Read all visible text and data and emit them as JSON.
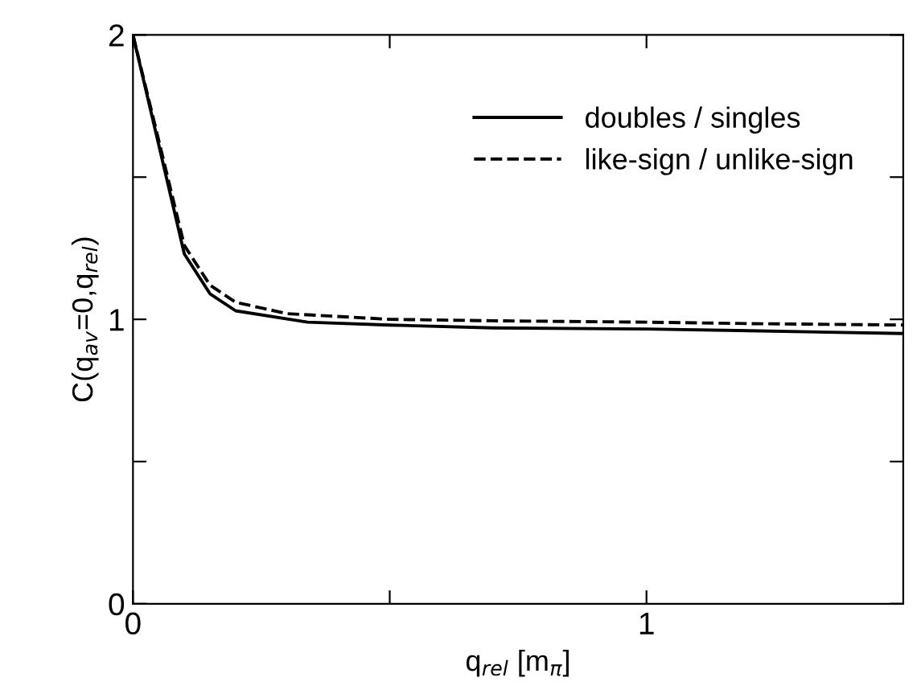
{
  "chart_data": {
    "type": "line",
    "xlabel": "q$_{rel}$ [m$_{π}$]",
    "ylabel": "C(q$_{av}$=0,q$_{rel}$)",
    "xlim": [
      0,
      1.5
    ],
    "ylim": [
      0,
      2
    ],
    "xticks": [
      0,
      {
        "value": 0.5,
        "label": null
      },
      1
    ],
    "yticks": [
      0,
      {
        "value": 0.5,
        "label": null
      },
      1,
      {
        "value": 1.5,
        "label": null
      },
      2
    ],
    "grid": false,
    "legend": "top right",
    "series": [
      {
        "name": "doubles / singles",
        "color": "#000000",
        "line_style": "solid",
        "x": [
          0,
          0.1,
          0.15,
          0.2,
          0.34,
          0.5,
          0.7,
          1.0,
          1.2,
          1.5
        ],
        "values": [
          2.0,
          1.23,
          1.09,
          1.03,
          0.99,
          0.98,
          0.97,
          0.966,
          0.96,
          0.95
        ]
      },
      {
        "name": "like-sign / unlike-sign",
        "color": "#000000",
        "line_style": "dashed",
        "x": [
          0,
          0.1,
          0.15,
          0.2,
          0.3,
          0.5,
          0.7,
          1.0,
          1.2,
          1.5
        ],
        "values": [
          2.0,
          1.26,
          1.12,
          1.06,
          1.02,
          1.0,
          0.995,
          0.99,
          0.985,
          0.98
        ]
      }
    ]
  }
}
